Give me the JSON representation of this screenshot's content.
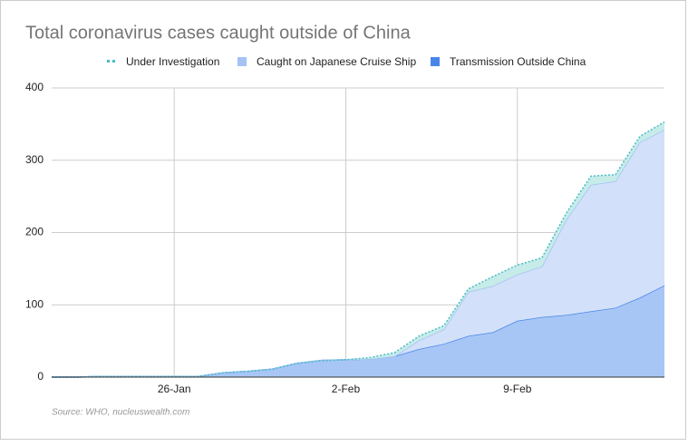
{
  "chart_data": {
    "type": "stacked-area",
    "title": "Total coronavirus cases caught outside of China",
    "source": "Source: WHO, nucleuswealth.com",
    "categories": [
      null,
      null,
      null,
      null,
      null,
      "26-Jan",
      null,
      null,
      null,
      null,
      null,
      null,
      "2-Feb",
      null,
      null,
      null,
      null,
      null,
      null,
      "9-Feb",
      null,
      null,
      null,
      null,
      null,
      null
    ],
    "series": [
      {
        "name": "Transmission Outside China",
        "color": "#4a86e8",
        "values": [
          0,
          0,
          1,
          1,
          1,
          1,
          1,
          6,
          8,
          11,
          19,
          23,
          24,
          25,
          29,
          39,
          46,
          57,
          62,
          78,
          83,
          86,
          91,
          96,
          110,
          127
        ]
      },
      {
        "name": "Caught on Japanese Cruise Ship",
        "color": "#a4c2f4",
        "values": [
          0,
          0,
          0,
          0,
          0,
          0,
          0,
          0,
          0,
          0,
          0,
          0,
          0,
          0,
          0,
          12,
          20,
          61,
          64,
          64,
          70,
          132,
          175,
          175,
          215,
          215
        ]
      },
      {
        "name": "Under Investigation",
        "color": "#46bdc6",
        "values": [
          0,
          0,
          0,
          0,
          0,
          0,
          0,
          0,
          0,
          0,
          0,
          0,
          0,
          2,
          5,
          6,
          5,
          4,
          13,
          13,
          12,
          9,
          12,
          9,
          8,
          11
        ]
      }
    ],
    "ylim": [
      0,
      400
    ],
    "yticks": [
      0,
      100,
      200,
      300,
      400
    ],
    "grid": true
  }
}
